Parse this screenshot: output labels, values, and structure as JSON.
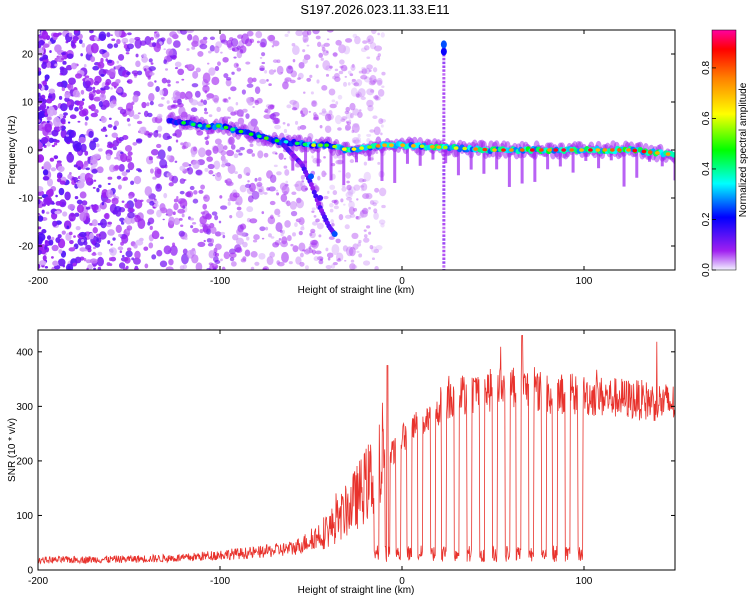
{
  "figure_title": "S197.2026.023.11.33.E11",
  "chart_data": [
    {
      "type": "heatmap",
      "name": "spectrogram",
      "xlabel": "Height of straight line (km)",
      "ylabel": "Frequency (Hz)",
      "xlim": [
        -200,
        150
      ],
      "ylim": [
        -25,
        25
      ],
      "xticks": [
        -200,
        -100,
        0,
        100
      ],
      "yticks": [
        -20,
        -10,
        0,
        10,
        20
      ],
      "colorbar": {
        "label": "Normalized spectral amplitude",
        "range": [
          0,
          0.95
        ],
        "ticks": [
          0.0,
          0.2,
          0.4,
          0.6,
          0.8
        ],
        "colors": [
          "#f2f2ff",
          "#a020f0",
          "#0000ff",
          "#00ffff",
          "#00ff00",
          "#ffff00",
          "#ff8000",
          "#ff0000",
          "#ff00a0"
        ]
      },
      "main_band": {
        "x": [
          -125,
          -110,
          -100,
          -90,
          -80,
          -70,
          -60,
          -50,
          -40,
          -30,
          -20,
          -10,
          0,
          25,
          50,
          75,
          100,
          125,
          150
        ],
        "freq_hz": [
          6,
          5,
          5,
          4,
          3,
          2,
          1.5,
          1,
          1,
          0,
          0.5,
          1,
          1,
          0.5,
          0,
          0,
          0,
          0,
          -1
        ],
        "amplitude": [
          0.45,
          0.5,
          0.55,
          0.5,
          0.5,
          0.5,
          0.5,
          0.6,
          0.55,
          0.8,
          0.7,
          0.75,
          0.75,
          0.8,
          0.85,
          0.85,
          0.9,
          0.9,
          0.85
        ]
      },
      "lower_branch": {
        "x": [
          -65,
          -55,
          -50,
          -45,
          -40,
          -37
        ],
        "freq_hz": [
          1,
          -3,
          -7,
          -12,
          -16,
          -17.5
        ]
      },
      "noise_region": {
        "x_from": -200,
        "x_to": -60,
        "freq_span": [
          -25,
          25
        ]
      },
      "vertical_streak": {
        "x": 23,
        "freq_span": [
          -25,
          23
        ]
      }
    },
    {
      "type": "line",
      "name": "snr",
      "xlabel": "Height of straight line (km)",
      "ylabel": "SNR (10 * v/v)",
      "xlim": [
        -200,
        150
      ],
      "ylim": [
        0,
        440
      ],
      "xticks": [
        -200,
        -100,
        0,
        100
      ],
      "yticks": [
        0,
        100,
        200,
        300,
        400
      ],
      "color": "#e8322c",
      "envelope": {
        "x": [
          -200,
          -150,
          -120,
          -100,
          -80,
          -60,
          -50,
          -40,
          -30,
          -20,
          -10,
          0,
          10,
          20,
          30,
          40,
          50,
          60,
          70,
          80,
          100,
          120,
          150
        ],
        "snr": [
          18,
          20,
          22,
          28,
          32,
          40,
          55,
          75,
          110,
          155,
          200,
          240,
          270,
          300,
          320,
          325,
          330,
          340,
          330,
          325,
          320,
          315,
          305
        ]
      },
      "spikes": [
        {
          "x": -8,
          "snr": 375
        },
        {
          "x": 66,
          "snr": 430
        }
      ],
      "dropouts": {
        "x": [
          -14,
          -8,
          -2,
          4,
          10,
          17,
          23,
          30,
          37,
          44,
          51,
          58,
          64,
          71,
          78,
          84,
          91,
          98
        ],
        "snr": 30
      }
    }
  ]
}
